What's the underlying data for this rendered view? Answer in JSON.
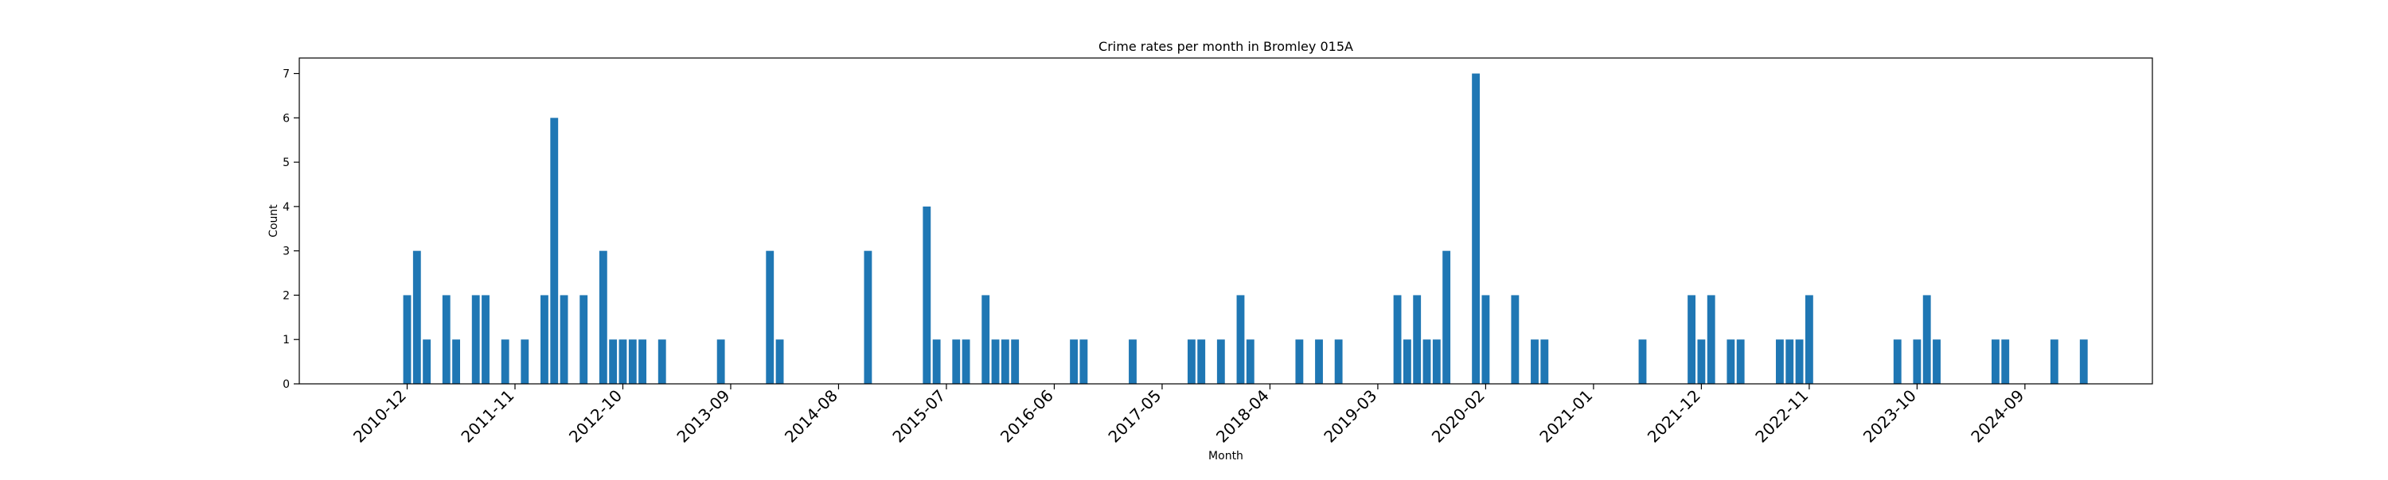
{
  "chart_data": {
    "type": "bar",
    "title": "Crime rates per month in Bromley 015A",
    "xlabel": "Month",
    "ylabel": "Count",
    "ylim": [
      0,
      7.35
    ],
    "yticks": [
      0,
      1,
      2,
      3,
      4,
      5,
      6,
      7
    ],
    "xlim": [
      "2010-01",
      "2025-10"
    ],
    "xticks": [
      "2010-12",
      "2011-11",
      "2012-10",
      "2013-09",
      "2014-08",
      "2015-07",
      "2016-06",
      "2017-05",
      "2018-04",
      "2019-03",
      "2020-02",
      "2021-01",
      "2021-12",
      "2022-11",
      "2023-10",
      "2024-09"
    ],
    "grid": false,
    "bar_color": "#1f77b4",
    "categories": [
      "2010-12",
      "2011-01",
      "2011-02",
      "2011-04",
      "2011-05",
      "2011-07",
      "2011-08",
      "2011-10",
      "2011-12",
      "2012-02",
      "2012-03",
      "2012-04",
      "2012-06",
      "2012-08",
      "2012-09",
      "2012-10",
      "2012-11",
      "2012-12",
      "2013-02",
      "2013-08",
      "2014-01",
      "2014-02",
      "2014-11",
      "2015-05",
      "2015-06",
      "2015-08",
      "2015-09",
      "2015-11",
      "2015-12",
      "2016-01",
      "2016-02",
      "2016-08",
      "2016-09",
      "2017-02",
      "2017-08",
      "2017-09",
      "2017-11",
      "2018-01",
      "2018-02",
      "2018-07",
      "2018-09",
      "2018-11",
      "2019-05",
      "2019-06",
      "2019-07",
      "2019-08",
      "2019-09",
      "2019-10",
      "2020-01",
      "2020-02",
      "2020-05",
      "2020-07",
      "2020-08",
      "2021-06",
      "2021-11",
      "2021-12",
      "2022-01",
      "2022-03",
      "2022-04",
      "2022-08",
      "2022-09",
      "2022-10",
      "2022-11",
      "2023-08",
      "2023-10",
      "2023-11",
      "2023-12",
      "2024-06",
      "2024-07",
      "2024-12",
      "2025-03"
    ],
    "values": [
      2,
      3,
      1,
      2,
      1,
      2,
      2,
      1,
      1,
      2,
      6,
      2,
      2,
      3,
      1,
      1,
      1,
      1,
      1,
      1,
      3,
      1,
      3,
      4,
      1,
      1,
      1,
      2,
      1,
      1,
      1,
      1,
      1,
      1,
      1,
      1,
      1,
      2,
      1,
      1,
      1,
      1,
      2,
      1,
      2,
      1,
      1,
      3,
      7,
      2,
      2,
      1,
      1,
      1,
      2,
      1,
      2,
      1,
      1,
      1,
      1,
      1,
      2,
      1,
      1,
      2,
      1,
      1,
      1,
      1,
      1
    ]
  }
}
